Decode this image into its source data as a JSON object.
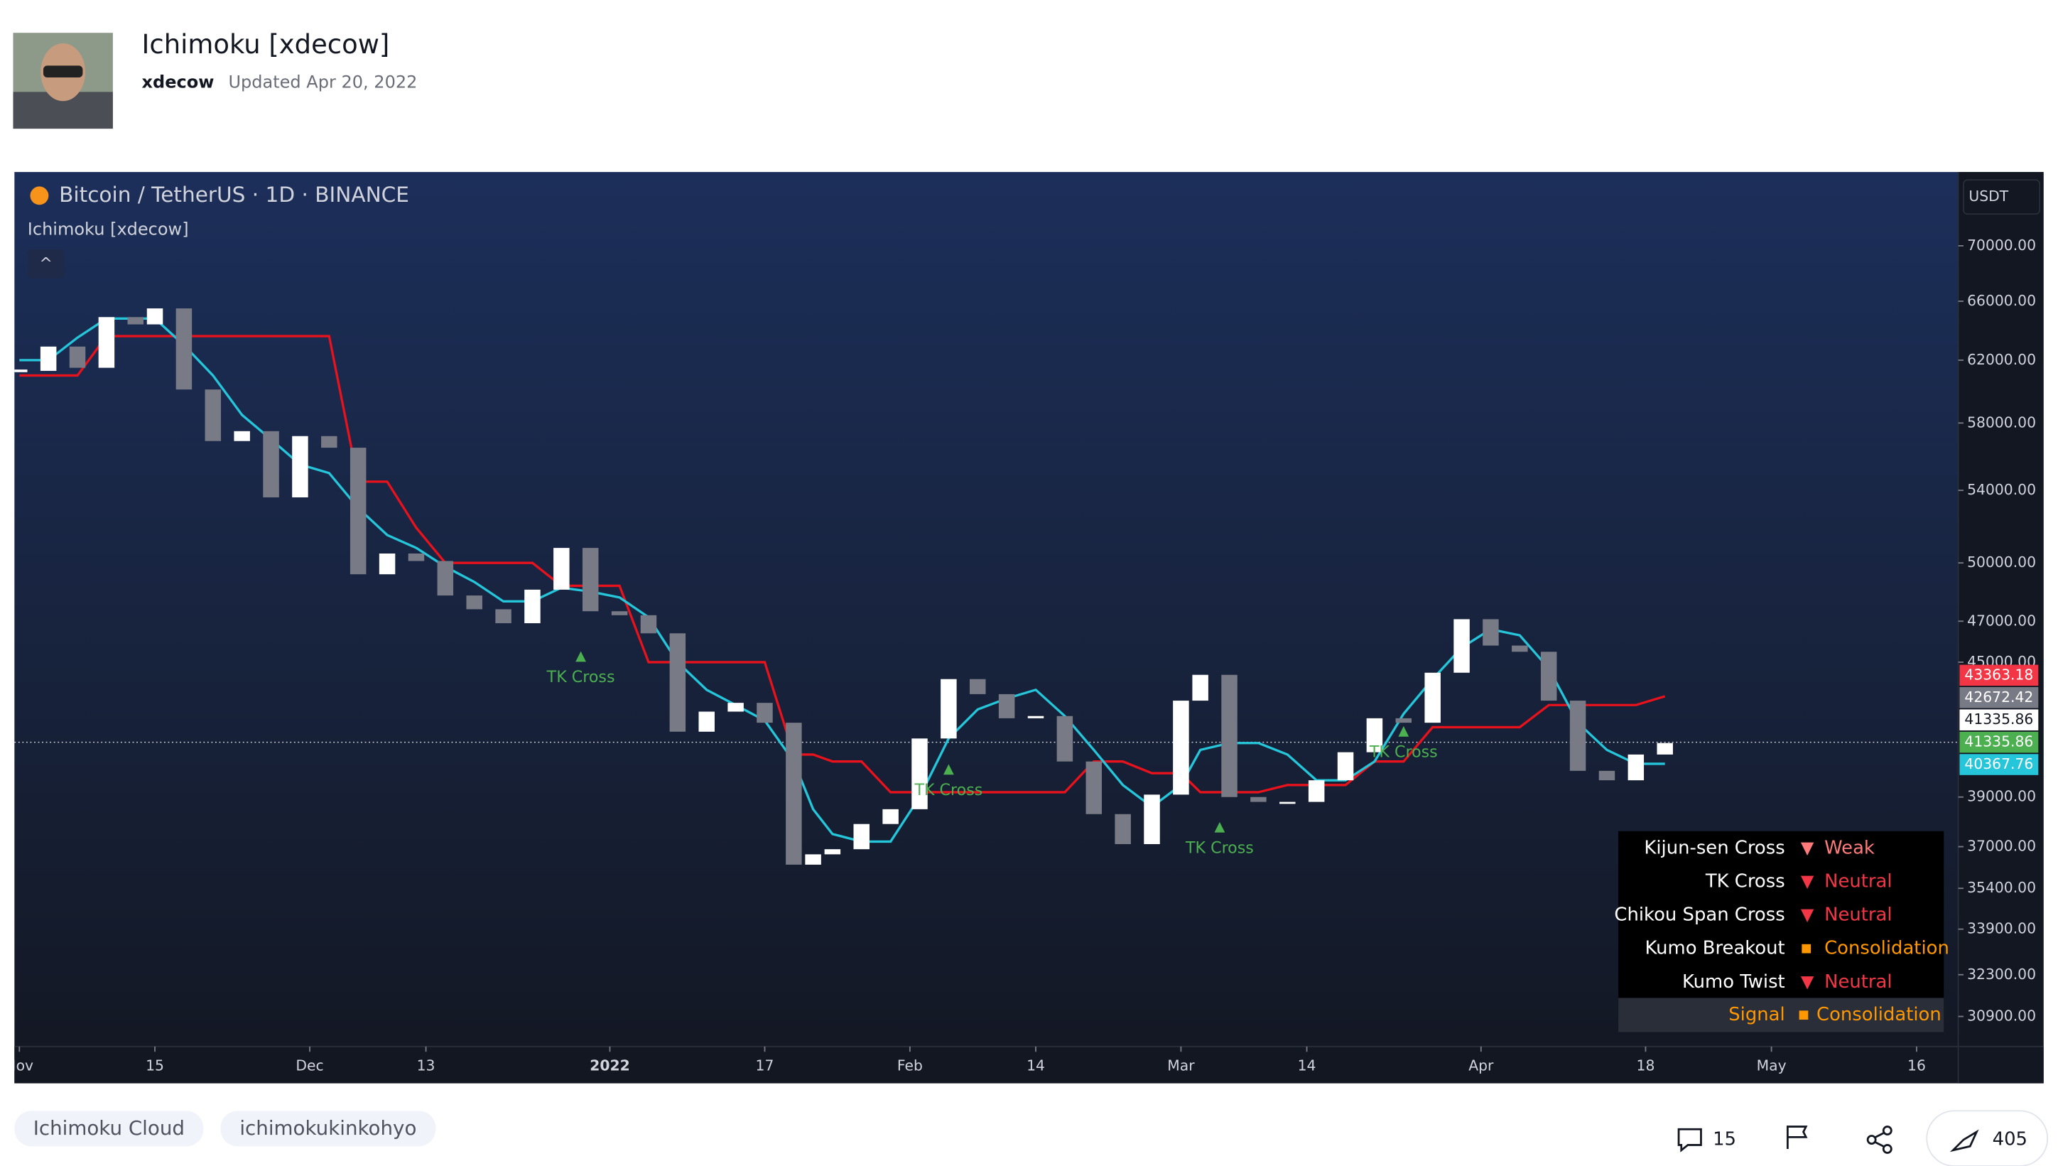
{
  "header": {
    "title": "Ichimoku [xdecow]",
    "author": "xdecow",
    "updated": "Updated Apr 20, 2022"
  },
  "chart_data": {
    "type": "candlestick",
    "title": "Bitcoin / TetherUS · 1D · BINANCE",
    "indicator": "Ichimoku [xdecow]",
    "currency": "USDT",
    "log_scale": true,
    "x": [
      0,
      3,
      6,
      9,
      12,
      14,
      17,
      20,
      23,
      26,
      29,
      32,
      35,
      38,
      41,
      44,
      47,
      50,
      53,
      56,
      59,
      62,
      65,
      68,
      71,
      74,
      77,
      80,
      82,
      84,
      87,
      90,
      93,
      96,
      99,
      102,
      105,
      108,
      111,
      114,
      117,
      120,
      122,
      125,
      128,
      131,
      134,
      137,
      140,
      143,
      146,
      149,
      152,
      155,
      158,
      161,
      164,
      167,
      170
    ],
    "close": [
      61300,
      62900,
      61500,
      64900,
      64400,
      65500,
      60100,
      56900,
      57500,
      53600,
      57200,
      56500,
      49400,
      50500,
      50100,
      48300,
      47600,
      46900,
      48600,
      50800,
      47500,
      47300,
      46400,
      41800,
      42700,
      43100,
      42200,
      36300,
      36700,
      36900,
      37900,
      38500,
      41500,
      44200,
      43500,
      42400,
      42500,
      40500,
      38300,
      37100,
      39100,
      43200,
      44400,
      39000,
      38800,
      38800,
      39700,
      40900,
      42400,
      42200,
      44500,
      47100,
      45800,
      45500,
      43200,
      40100,
      39700,
      40800,
      41300
    ],
    "up_color": "#ffffff",
    "down_color": "#787b86",
    "lines": [
      {
        "color": "#e8121c",
        "values": [
          61000,
          61000,
          61000,
          63600,
          63600,
          63600,
          63600,
          63600,
          63600,
          63600,
          63600,
          63600,
          54500,
          54500,
          51900,
          50000,
          50000,
          50000,
          50000,
          48800,
          48800,
          48800,
          45000,
          45000,
          45000,
          45000,
          45000,
          40800,
          40800,
          40500,
          40500,
          39200,
          39200,
          39200,
          39200,
          39200,
          39200,
          39200,
          40500,
          40500,
          40000,
          40000,
          39200,
          39200,
          39200,
          39500,
          39500,
          39500,
          40500,
          40500,
          42000,
          42000,
          42000,
          42000,
          43000,
          43000,
          43000,
          43000,
          43400
        ]
      },
      {
        "color": "#26c6da",
        "values": [
          62000,
          62000,
          63500,
          64800,
          64800,
          64800,
          63000,
          61000,
          58500,
          57000,
          55500,
          55000,
          53000,
          51500,
          50800,
          49800,
          49000,
          48000,
          48000,
          48700,
          48500,
          48200,
          47200,
          45000,
          43700,
          43000,
          42300,
          40500,
          38500,
          37500,
          37200,
          37200,
          39000,
          41500,
          42800,
          43300,
          43700,
          42500,
          41000,
          39500,
          38600,
          39500,
          41000,
          41300,
          41300,
          40800,
          39700,
          39700,
          40500,
          42600,
          44200,
          45700,
          46600,
          46300,
          44700,
          42200,
          41000,
          40400,
          40400
        ]
      }
    ],
    "xlim": [
      -0.51,
      200.3
    ],
    "xticks": [
      {
        "value": 0,
        "label": "Nov"
      },
      {
        "value": 14,
        "label": "15"
      },
      {
        "value": 30,
        "label": "Dec"
      },
      {
        "value": 42,
        "label": "13"
      },
      {
        "value": 61,
        "label": "2022"
      },
      {
        "value": 77,
        "label": "17"
      },
      {
        "value": 92,
        "label": "Feb"
      },
      {
        "value": 105,
        "label": "14"
      },
      {
        "value": 120,
        "label": "Mar"
      },
      {
        "value": 133,
        "label": "14"
      },
      {
        "value": 151,
        "label": "Apr"
      },
      {
        "value": 168,
        "label": "18"
      },
      {
        "value": 181,
        "label": "May"
      },
      {
        "value": 196,
        "label": "16"
      }
    ],
    "ylim": [
      29930,
      75700
    ],
    "yticks": [
      {
        "value": 70000,
        "label": "70000.00"
      },
      {
        "value": 66000,
        "label": "66000.00"
      },
      {
        "value": 62000,
        "label": "62000.00"
      },
      {
        "value": 58000,
        "label": "58000.00"
      },
      {
        "value": 54000,
        "label": "54000.00"
      },
      {
        "value": 50000,
        "label": "50000.00"
      },
      {
        "value": 47000,
        "label": "47000.00"
      },
      {
        "value": 45000,
        "label": "45000.00"
      },
      {
        "value": 39000,
        "label": "39000.00"
      },
      {
        "value": 37000,
        "label": "37000.00"
      },
      {
        "value": 35400,
        "label": "35400.00"
      },
      {
        "value": 33900,
        "label": "33900.00"
      },
      {
        "value": 32300,
        "label": "32300.00"
      },
      {
        "value": 30900,
        "label": "30900.00"
      }
    ],
    "price_labels": [
      {
        "value": 43363.18,
        "color": "#f23645"
      },
      {
        "value": 42672.42,
        "color": "#787b86"
      },
      {
        "value": 41335.86,
        "color": "#ffffff"
      },
      {
        "value": 41335.86,
        "color": "#4caf50"
      },
      {
        "value": 40367.76,
        "color": "#26c6da"
      }
    ],
    "last_price": 41335.86,
    "annotations": [
      {
        "text": "TK Cross",
        "x": 58
      },
      {
        "text": "TK Cross",
        "x": 96
      },
      {
        "text": "TK Cross",
        "x": 124
      },
      {
        "text": "TK Cross",
        "x": 143
      }
    ]
  },
  "status_table": {
    "rows": [
      [
        "Kijun-sen Cross",
        "▼",
        "Weak"
      ],
      [
        "TK Cross",
        "▼",
        "Neutral"
      ],
      [
        "Chikou Span Cross",
        "▼",
        "Neutral"
      ],
      [
        "Kumo Breakout",
        "■",
        "Consolidation"
      ],
      [
        "Kumo Twist",
        "▼",
        "Neutral"
      ]
    ],
    "signal": [
      "Signal",
      "■",
      "Consolidation"
    ]
  },
  "tags": [
    "Ichimoku Cloud",
    "ichimokukinkohyo"
  ],
  "footer": {
    "comments": 15,
    "boosts": 405
  }
}
